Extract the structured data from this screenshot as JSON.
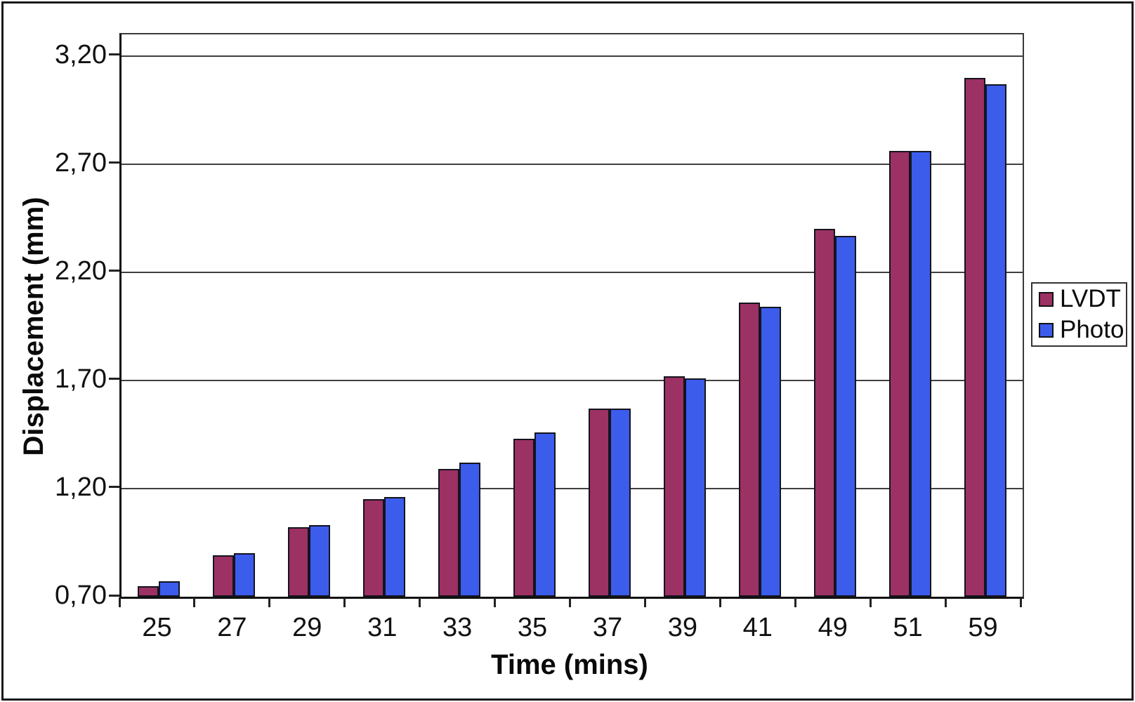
{
  "chart_data": {
    "type": "bar",
    "title": "",
    "xlabel": "Time (mins)",
    "ylabel": "Displacement (mm)",
    "categories": [
      "25",
      "27",
      "29",
      "31",
      "33",
      "35",
      "37",
      "39",
      "41",
      "49",
      "51",
      "59"
    ],
    "series": [
      {
        "name": "LVDT",
        "color": "#9C3163",
        "values": [
          0.75,
          0.89,
          1.02,
          1.15,
          1.29,
          1.43,
          1.57,
          1.72,
          2.06,
          2.4,
          2.76,
          3.1
        ]
      },
      {
        "name": "Photo",
        "color": "#3C5CEC",
        "values": [
          0.77,
          0.9,
          1.03,
          1.16,
          1.32,
          1.46,
          1.57,
          1.71,
          2.04,
          2.37,
          2.76,
          3.07
        ]
      }
    ],
    "ylim": [
      0.7,
      3.3
    ],
    "ytick_values": [
      0.7,
      1.2,
      1.7,
      2.2,
      2.7,
      3.2
    ],
    "ytick_labels": [
      "0,70",
      "1,20",
      "1,70",
      "2,20",
      "2,70",
      "3,20"
    ],
    "grid": true,
    "legend_position": "right",
    "decimal_separator": ","
  }
}
